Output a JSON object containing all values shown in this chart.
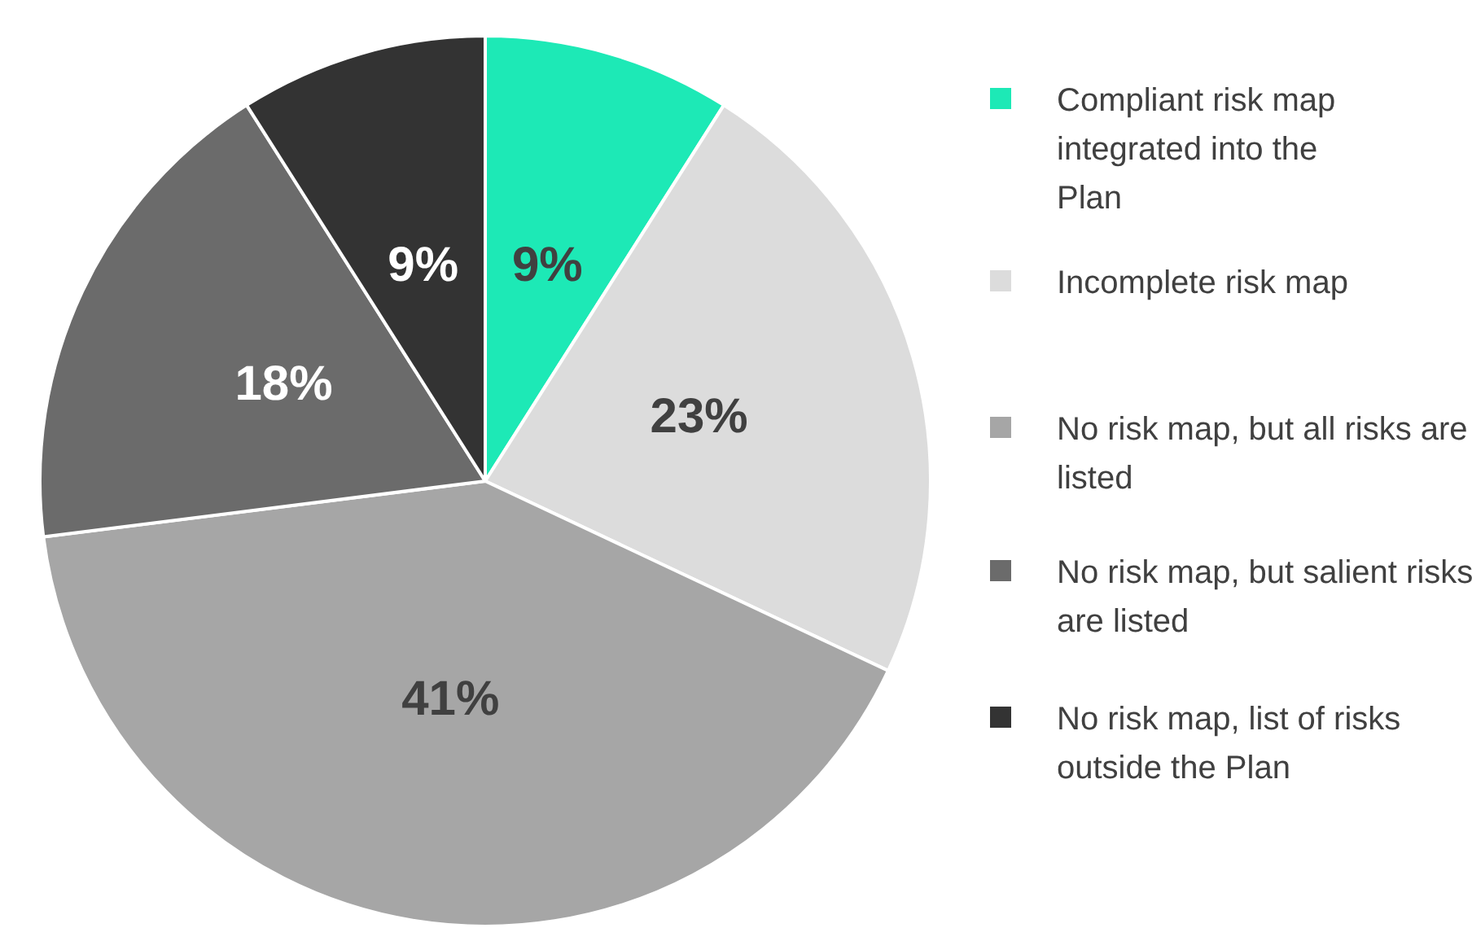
{
  "chart_data": {
    "type": "pie",
    "categories": [
      "Compliant risk map integrated into the Plan",
      "Incomplete risk map",
      "No risk map, but all risks are listed",
      "No risk map, but salient risks are listed",
      "No risk map, list of risks outside the Plan"
    ],
    "values": [
      9,
      23,
      41,
      18,
      9
    ],
    "value_labels": [
      "9%",
      "23%",
      "41%",
      "18%",
      "9%"
    ],
    "colors": [
      "#1de9b6",
      "#dcdcdc",
      "#a6a6a6",
      "#6b6b6b",
      "#333333"
    ],
    "legend": "right"
  }
}
